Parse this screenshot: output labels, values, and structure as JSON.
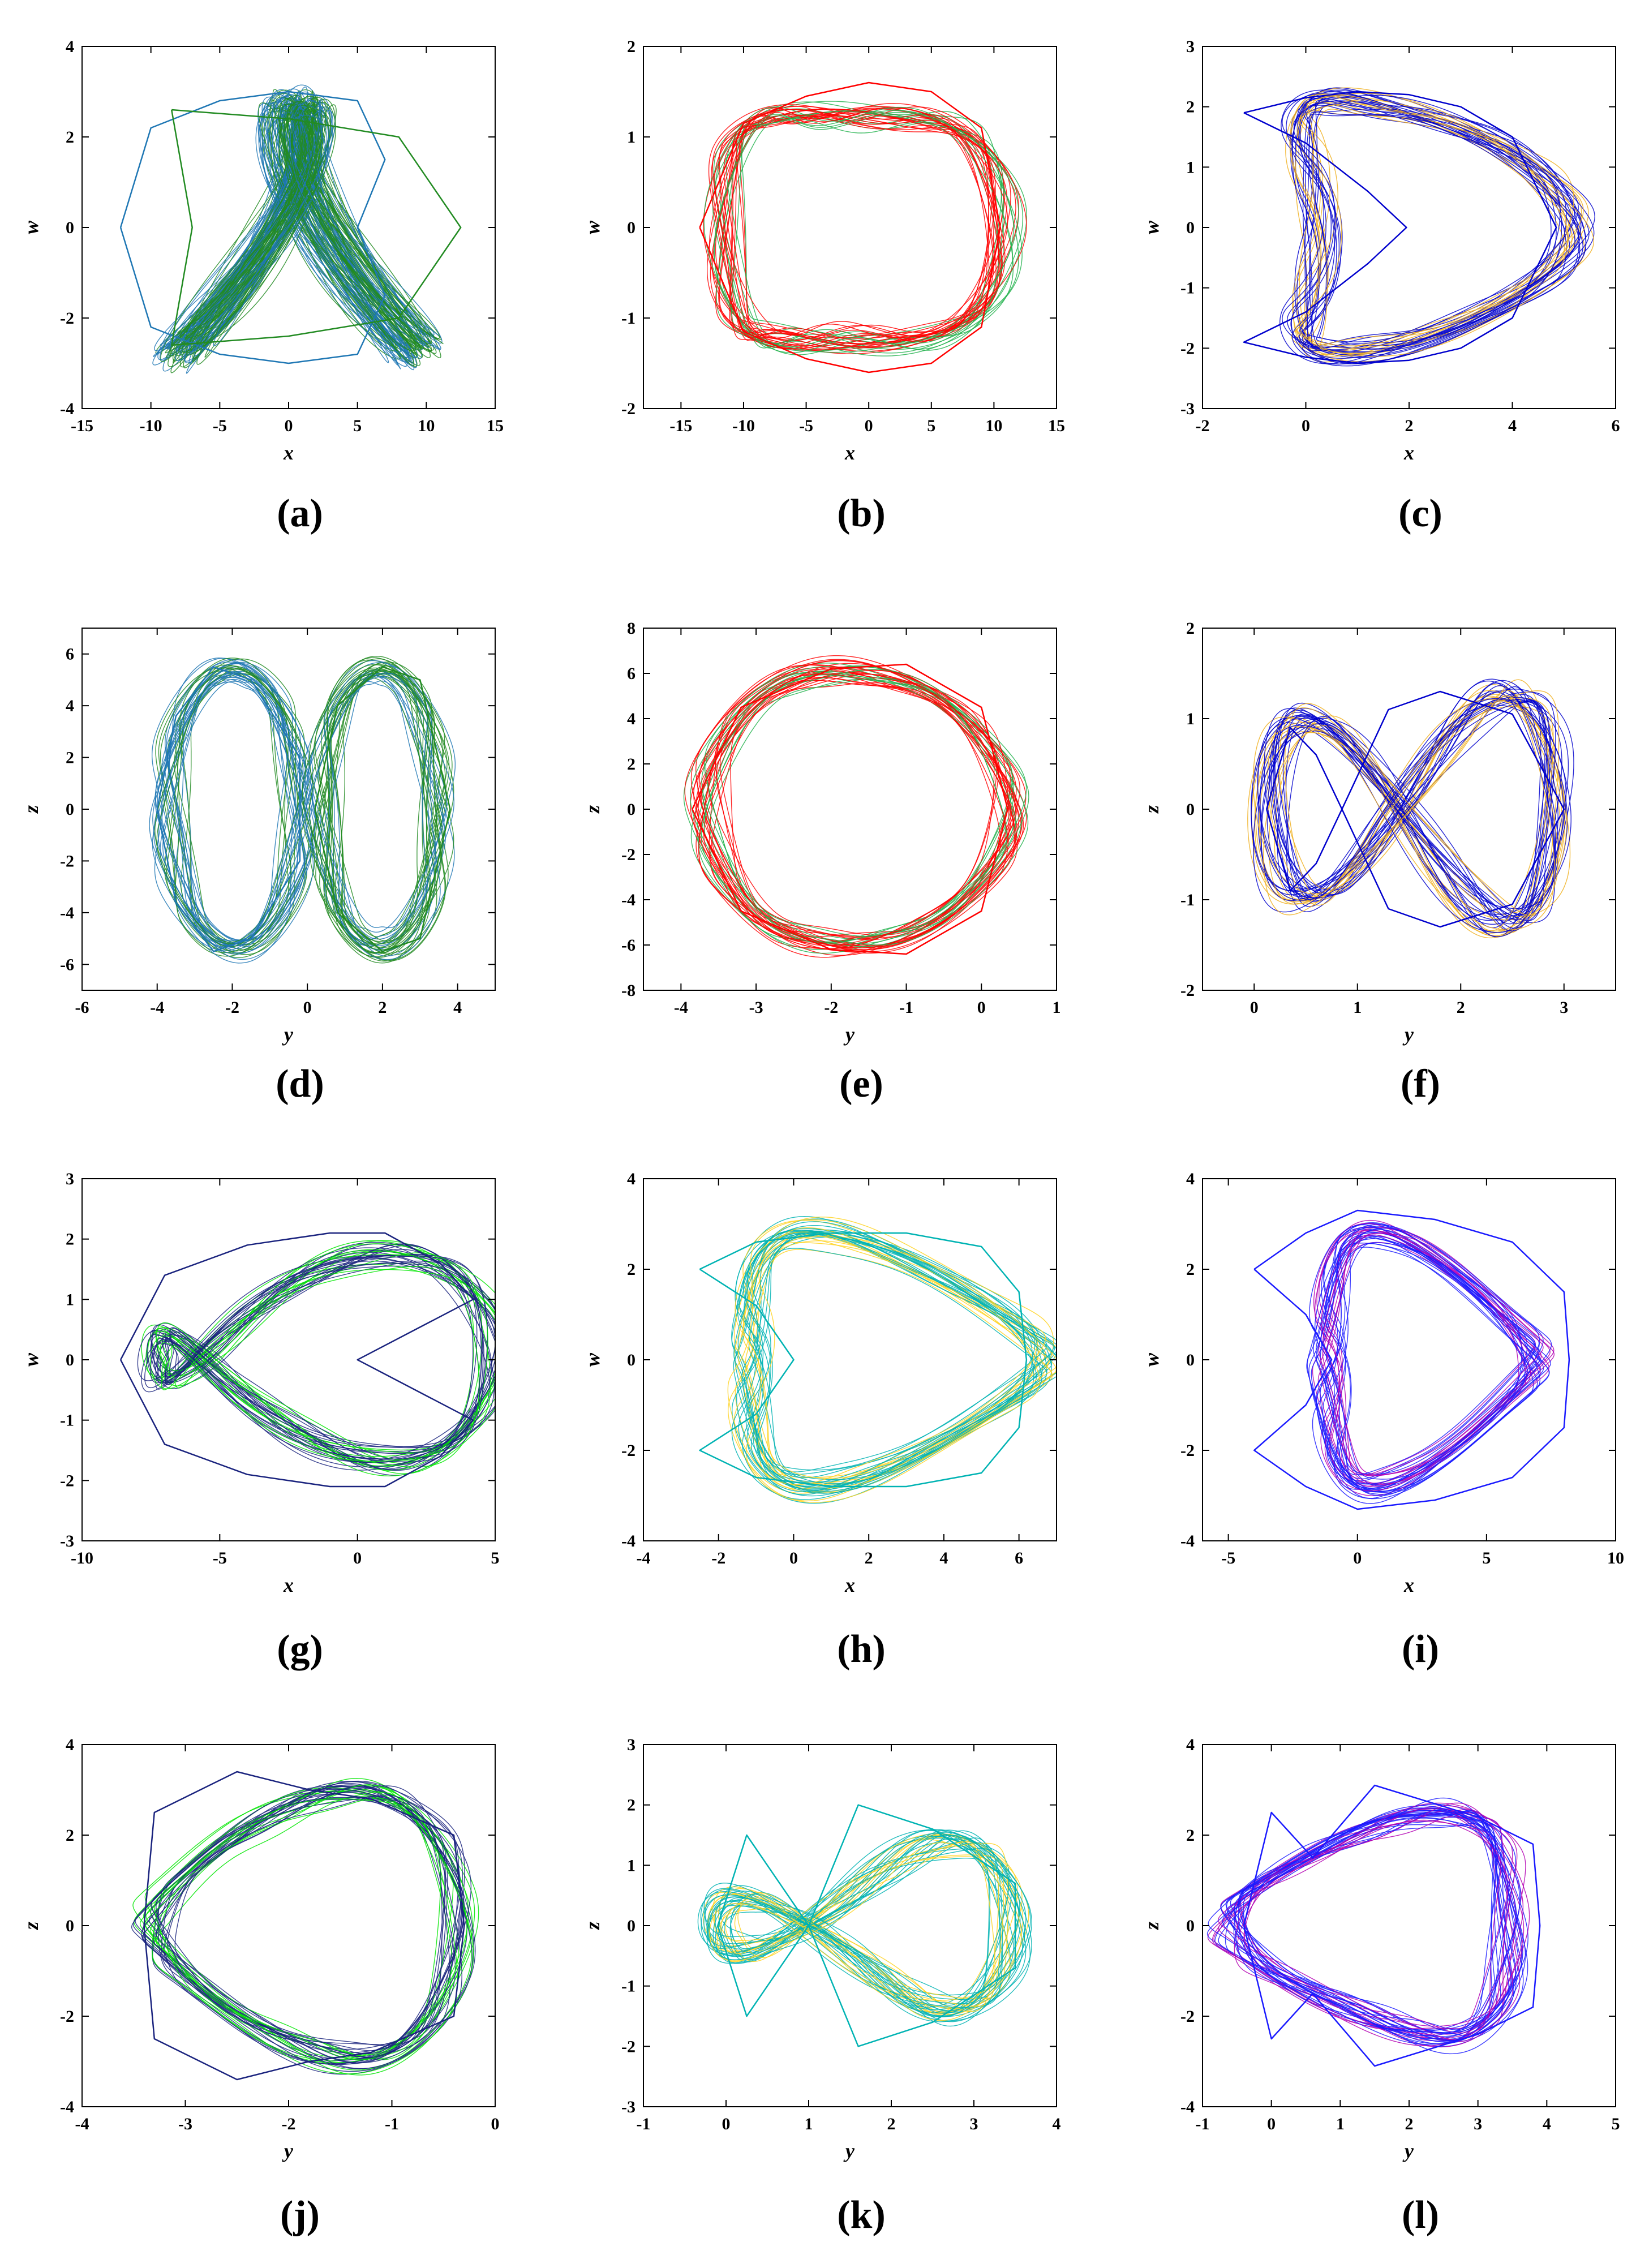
{
  "chart_data": [
    {
      "type": "line",
      "panel_label": "(a)",
      "xlabel": "x",
      "ylabel": "w",
      "xlim": [
        -15,
        15
      ],
      "ylim": [
        -4,
        4
      ],
      "xticks": [
        "-15",
        "-10",
        "-5",
        "0",
        "5",
        "10",
        "15"
      ],
      "yticks": [
        "-4",
        "-2",
        "0",
        "2",
        "4"
      ],
      "grid": false,
      "legend": "none",
      "colors": [
        "#1f77b4",
        "#228b22"
      ],
      "shape": "butterfly",
      "series": [
        {
          "values": [
            [
              -12.2,
              0.0
            ],
            [
              -10,
              2.2
            ],
            [
              -5,
              2.8
            ],
            [
              0,
              3.0
            ],
            [
              5,
              2.8
            ],
            [
              7,
              1.5
            ],
            [
              5,
              0
            ],
            [
              7,
              -1.5
            ],
            [
              5,
              -2.8
            ],
            [
              0,
              -3.0
            ],
            [
              -5,
              -2.8
            ],
            [
              -10,
              -2.2
            ],
            [
              -12.2,
              0.0
            ]
          ]
        },
        {
          "values": [
            [
              -8.5,
              2.6
            ],
            [
              0,
              2.4
            ],
            [
              8,
              2.0
            ],
            [
              12.5,
              0
            ],
            [
              8,
              -2.0
            ],
            [
              0,
              -2.4
            ],
            [
              -8.5,
              -2.6
            ],
            [
              -7,
              0
            ],
            [
              -8.5,
              2.6
            ]
          ]
        }
      ]
    },
    {
      "type": "line",
      "panel_label": "(b)",
      "xlabel": "x",
      "ylabel": "w",
      "xlim": [
        -18,
        15
      ],
      "ylim": [
        -2,
        2
      ],
      "xticks": [
        "-15",
        "-10",
        "-5",
        "0",
        "5",
        "10",
        "15"
      ],
      "yticks": [
        "-2",
        "-1",
        "0",
        "1",
        "2"
      ],
      "grid": false,
      "legend": "none",
      "colors": [
        "#ff0000",
        "#22b14c"
      ],
      "shape": "loop",
      "series": [
        {
          "values": [
            [
              -13.5,
              0
            ],
            [
              -10,
              1.15
            ],
            [
              -5,
              1.45
            ],
            [
              0,
              1.6
            ],
            [
              5,
              1.5
            ],
            [
              9,
              1.1
            ],
            [
              10.5,
              0
            ],
            [
              9,
              -1.1
            ],
            [
              5,
              -1.5
            ],
            [
              0,
              -1.6
            ],
            [
              -5,
              -1.45
            ],
            [
              -10,
              -1.15
            ],
            [
              -13.5,
              0
            ]
          ]
        }
      ]
    },
    {
      "type": "line",
      "panel_label": "(c)",
      "xlabel": "x",
      "ylabel": "w",
      "xlim": [
        -2,
        6
      ],
      "ylim": [
        -3,
        3
      ],
      "xticks": [
        "-2",
        "0",
        "2",
        "4",
        "6"
      ],
      "yticks": [
        "-3",
        "-2",
        "-1",
        "0",
        "1",
        "2",
        "3"
      ],
      "grid": false,
      "legend": "none",
      "colors": [
        "#0000cd",
        "#f0b020"
      ],
      "shape": "crescent",
      "series": [
        {
          "values": [
            [
              -1.2,
              1.9
            ],
            [
              0,
              2.15
            ],
            [
              1,
              2.25
            ],
            [
              2,
              2.2
            ],
            [
              3,
              2.0
            ],
            [
              4,
              1.5
            ],
            [
              4.85,
              0
            ],
            [
              4,
              -1.5
            ],
            [
              3,
              -2.0
            ],
            [
              2,
              -2.2
            ],
            [
              1,
              -2.25
            ],
            [
              0,
              -2.15
            ],
            [
              -1.2,
              -1.9
            ],
            [
              0,
              -1.4
            ],
            [
              1.2,
              -0.6
            ],
            [
              1.95,
              0
            ],
            [
              1.2,
              0.6
            ],
            [
              0,
              1.4
            ],
            [
              -1.2,
              1.9
            ]
          ]
        }
      ]
    },
    {
      "type": "line",
      "panel_label": "(d)",
      "xlabel": "y",
      "ylabel": "z",
      "xlim": [
        -6,
        5
      ],
      "ylim": [
        -7,
        7
      ],
      "xticks": [
        "-6",
        "-4",
        "-2",
        "0",
        "2",
        "4"
      ],
      "yticks": [
        "-6",
        "-4",
        "-2",
        "0",
        "2",
        "4",
        "6"
      ],
      "grid": false,
      "legend": "none",
      "colors": [
        "#1f77b4",
        "#228b22"
      ],
      "shape": "rings",
      "series": [
        {
          "values": [
            [
              -4.0,
              0
            ],
            [
              -3.5,
              3.6
            ],
            [
              -2.5,
              5.5
            ],
            [
              -1.5,
              5.0
            ],
            [
              -0.2,
              2
            ],
            [
              -0.2,
              -2
            ],
            [
              -1.5,
              -5.0
            ],
            [
              -2.5,
              -5.5
            ],
            [
              -3.5,
              -3.6
            ],
            [
              -4.0,
              0
            ]
          ]
        },
        {
          "values": [
            [
              0.2,
              0
            ],
            [
              0.8,
              4.0
            ],
            [
              2.0,
              5.5
            ],
            [
              3.0,
              5.0
            ],
            [
              3.8,
              0
            ],
            [
              3.0,
              -5.0
            ],
            [
              2.0,
              -5.5
            ],
            [
              0.8,
              -4.0
            ],
            [
              0.2,
              0
            ]
          ]
        }
      ]
    },
    {
      "type": "line",
      "panel_label": "(e)",
      "xlabel": "y",
      "ylabel": "z",
      "xlim": [
        -4.5,
        1
      ],
      "ylim": [
        -8,
        8
      ],
      "xticks": [
        "-4",
        "-3",
        "-2",
        "-1",
        "0",
        "1"
      ],
      "yticks": [
        "-8",
        "-6",
        "-4",
        "-2",
        "0",
        "2",
        "4",
        "6",
        "8"
      ],
      "grid": false,
      "legend": "none",
      "colors": [
        "#ff0000",
        "#22b14c"
      ],
      "shape": "ring",
      "series": [
        {
          "values": [
            [
              -3.85,
              0
            ],
            [
              -3.2,
              4.5
            ],
            [
              -2.0,
              6.2
            ],
            [
              -1.0,
              6.4
            ],
            [
              0,
              4.5
            ],
            [
              0.35,
              0
            ],
            [
              0,
              -4.5
            ],
            [
              -1.0,
              -6.4
            ],
            [
              -2.0,
              -6.2
            ],
            [
              -3.2,
              -4.5
            ],
            [
              -3.85,
              0
            ]
          ]
        }
      ]
    },
    {
      "type": "line",
      "panel_label": "(f)",
      "xlabel": "y",
      "ylabel": "z",
      "xlim": [
        -0.5,
        3.5
      ],
      "ylim": [
        -2,
        2
      ],
      "xticks": [
        "0",
        "1",
        "2",
        "3"
      ],
      "yticks": [
        "-2",
        "-1",
        "0",
        "1",
        "2"
      ],
      "grid": false,
      "legend": "none",
      "colors": [
        "#0000cd",
        "#f0b020"
      ],
      "shape": "eight",
      "series": [
        {
          "values": [
            [
              0.12,
              0
            ],
            [
              0.35,
              0.9
            ],
            [
              0.6,
              0.6
            ],
            [
              0.85,
              0
            ],
            [
              1.3,
              1.1
            ],
            [
              1.8,
              1.3
            ],
            [
              2.5,
              1.05
            ],
            [
              3.0,
              0
            ],
            [
              2.5,
              -1.05
            ],
            [
              1.8,
              -1.3
            ],
            [
              1.3,
              -1.1
            ],
            [
              0.85,
              0
            ],
            [
              0.6,
              -0.6
            ],
            [
              0.35,
              -0.9
            ],
            [
              0.12,
              0
            ]
          ]
        }
      ]
    },
    {
      "type": "line",
      "panel_label": "(g)",
      "xlabel": "x",
      "ylabel": "w",
      "xlim": [
        -10,
        5
      ],
      "ylim": [
        -3,
        3
      ],
      "xticks": [
        "-10",
        "-5",
        "0",
        "5"
      ],
      "yticks": [
        "-3",
        "-2",
        "-1",
        "0",
        "1",
        "2",
        "3"
      ],
      "grid": false,
      "legend": "none",
      "colors": [
        "#1a237e",
        "#00e600"
      ],
      "shape": "fish",
      "series": [
        {
          "values": [
            [
              -8.6,
              0
            ],
            [
              -7,
              1.4
            ],
            [
              -4,
              1.9
            ],
            [
              -1,
              2.1
            ],
            [
              1,
              2.1
            ],
            [
              3,
              1.6
            ],
            [
              4.2,
              1.0
            ],
            [
              0,
              0
            ],
            [
              4.2,
              -1.0
            ],
            [
              3,
              -1.6
            ],
            [
              1,
              -2.1
            ],
            [
              -1,
              -2.1
            ],
            [
              -4,
              -1.9
            ],
            [
              -7,
              -1.4
            ],
            [
              -8.6,
              0
            ]
          ]
        }
      ]
    },
    {
      "type": "line",
      "panel_label": "(h)",
      "xlabel": "x",
      "ylabel": "w",
      "xlim": [
        -4,
        7
      ],
      "ylim": [
        -4,
        4
      ],
      "xticks": [
        "-4",
        "-2",
        "0",
        "2",
        "4",
        "6"
      ],
      "yticks": [
        "-4",
        "-2",
        "0",
        "2",
        "4"
      ],
      "grid": false,
      "legend": "none",
      "colors": [
        "#00b3b3",
        "#ffd21f",
        "#7bd27b"
      ],
      "shape": "mshape",
      "series": [
        {
          "values": [
            [
              -2.5,
              2.0
            ],
            [
              -1,
              2.6
            ],
            [
              1,
              2.8
            ],
            [
              3,
              2.8
            ],
            [
              5,
              2.5
            ],
            [
              6,
              1.5
            ],
            [
              6.2,
              0
            ],
            [
              6,
              -1.5
            ],
            [
              5,
              -2.5
            ],
            [
              3,
              -2.8
            ],
            [
              1,
              -2.8
            ],
            [
              -1,
              -2.6
            ],
            [
              -2.5,
              -2.0
            ],
            [
              -1,
              -1.2
            ],
            [
              0,
              0
            ],
            [
              -1,
              1.2
            ],
            [
              -2.5,
              2.0
            ]
          ]
        }
      ]
    },
    {
      "type": "line",
      "panel_label": "(i)",
      "xlabel": "x",
      "ylabel": "w",
      "xlim": [
        -6,
        10
      ],
      "ylim": [
        -4,
        4
      ],
      "xticks": [
        "-5",
        "0",
        "5",
        "10"
      ],
      "yticks": [
        "-4",
        "-2",
        "0",
        "2",
        "4"
      ],
      "grid": false,
      "legend": "none",
      "colors": [
        "#1a1aff",
        "#b300b3"
      ],
      "shape": "mshape",
      "series": [
        {
          "values": [
            [
              -4,
              2.0
            ],
            [
              -2,
              2.8
            ],
            [
              0,
              3.3
            ],
            [
              3,
              3.1
            ],
            [
              6,
              2.6
            ],
            [
              8,
              1.5
            ],
            [
              8.2,
              0
            ],
            [
              8,
              -1.5
            ],
            [
              6,
              -2.6
            ],
            [
              3,
              -3.1
            ],
            [
              0,
              -3.3
            ],
            [
              -2,
              -2.8
            ],
            [
              -4,
              -2.0
            ],
            [
              -2,
              -1.0
            ],
            [
              -1,
              0
            ],
            [
              -2,
              1.0
            ],
            [
              -4,
              2.0
            ]
          ]
        }
      ]
    },
    {
      "type": "line",
      "panel_label": "(j)",
      "xlabel": "y",
      "ylabel": "z",
      "xlim": [
        -4,
        0
      ],
      "ylim": [
        -4,
        4
      ],
      "xticks": [
        "-4",
        "-3",
        "-2",
        "-1",
        "0"
      ],
      "yticks": [
        "-4",
        "-2",
        "0",
        "2",
        "4"
      ],
      "grid": false,
      "legend": "none",
      "colors": [
        "#1a237e",
        "#00e600"
      ],
      "shape": "knot",
      "series": [
        {
          "values": [
            [
              -3.4,
              0
            ],
            [
              -3.3,
              2.5
            ],
            [
              -2.5,
              3.4
            ],
            [
              -1.8,
              3.0
            ],
            [
              -1.2,
              2.8
            ],
            [
              -0.4,
              2.0
            ],
            [
              -0.3,
              0
            ],
            [
              -0.4,
              -2.0
            ],
            [
              -1.2,
              -2.8
            ],
            [
              -1.8,
              -3.0
            ],
            [
              -2.5,
              -3.4
            ],
            [
              -3.3,
              -2.5
            ],
            [
              -3.4,
              0
            ]
          ]
        }
      ]
    },
    {
      "type": "line",
      "panel_label": "(k)",
      "xlabel": "y",
      "ylabel": "z",
      "xlim": [
        -1,
        4
      ],
      "ylim": [
        -3,
        3
      ],
      "xticks": [
        "-1",
        "0",
        "1",
        "2",
        "3",
        "4"
      ],
      "yticks": [
        "-3",
        "-2",
        "-1",
        "0",
        "1",
        "2",
        "3"
      ],
      "grid": false,
      "legend": "none",
      "colors": [
        "#00b3b3",
        "#ffd21f",
        "#7bd27b"
      ],
      "shape": "bowtie",
      "series": [
        {
          "values": [
            [
              -0.1,
              0
            ],
            [
              0.25,
              1.5
            ],
            [
              0.6,
              0.8
            ],
            [
              1.0,
              0
            ],
            [
              1.6,
              2.0
            ],
            [
              2.5,
              1.6
            ],
            [
              3.5,
              0.7
            ],
            [
              3.5,
              -0.7
            ],
            [
              2.5,
              -1.6
            ],
            [
              1.6,
              -2.0
            ],
            [
              1.0,
              0
            ],
            [
              0.6,
              -0.8
            ],
            [
              0.25,
              -1.5
            ],
            [
              -0.1,
              0
            ]
          ]
        }
      ]
    },
    {
      "type": "line",
      "panel_label": "(l)",
      "xlabel": "y",
      "ylabel": "z",
      "xlim": [
        -1,
        5
      ],
      "ylim": [
        -4,
        4
      ],
      "xticks": [
        "-1",
        "0",
        "1",
        "2",
        "3",
        "4",
        "5"
      ],
      "yticks": [
        "-4",
        "-2",
        "0",
        "2",
        "4"
      ],
      "grid": false,
      "legend": "none",
      "colors": [
        "#1a1aff",
        "#b300b3"
      ],
      "shape": "horn",
      "series": [
        {
          "values": [
            [
              -0.4,
              0
            ],
            [
              0,
              2.5
            ],
            [
              0.6,
              1.5
            ],
            [
              1.5,
              3.1
            ],
            [
              3.0,
              2.4
            ],
            [
              3.8,
              1.8
            ],
            [
              3.9,
              0
            ],
            [
              3.8,
              -1.8
            ],
            [
              3.0,
              -2.4
            ],
            [
              1.5,
              -3.1
            ],
            [
              0.6,
              -1.5
            ],
            [
              0,
              -2.5
            ],
            [
              -0.4,
              0
            ]
          ]
        }
      ]
    }
  ]
}
